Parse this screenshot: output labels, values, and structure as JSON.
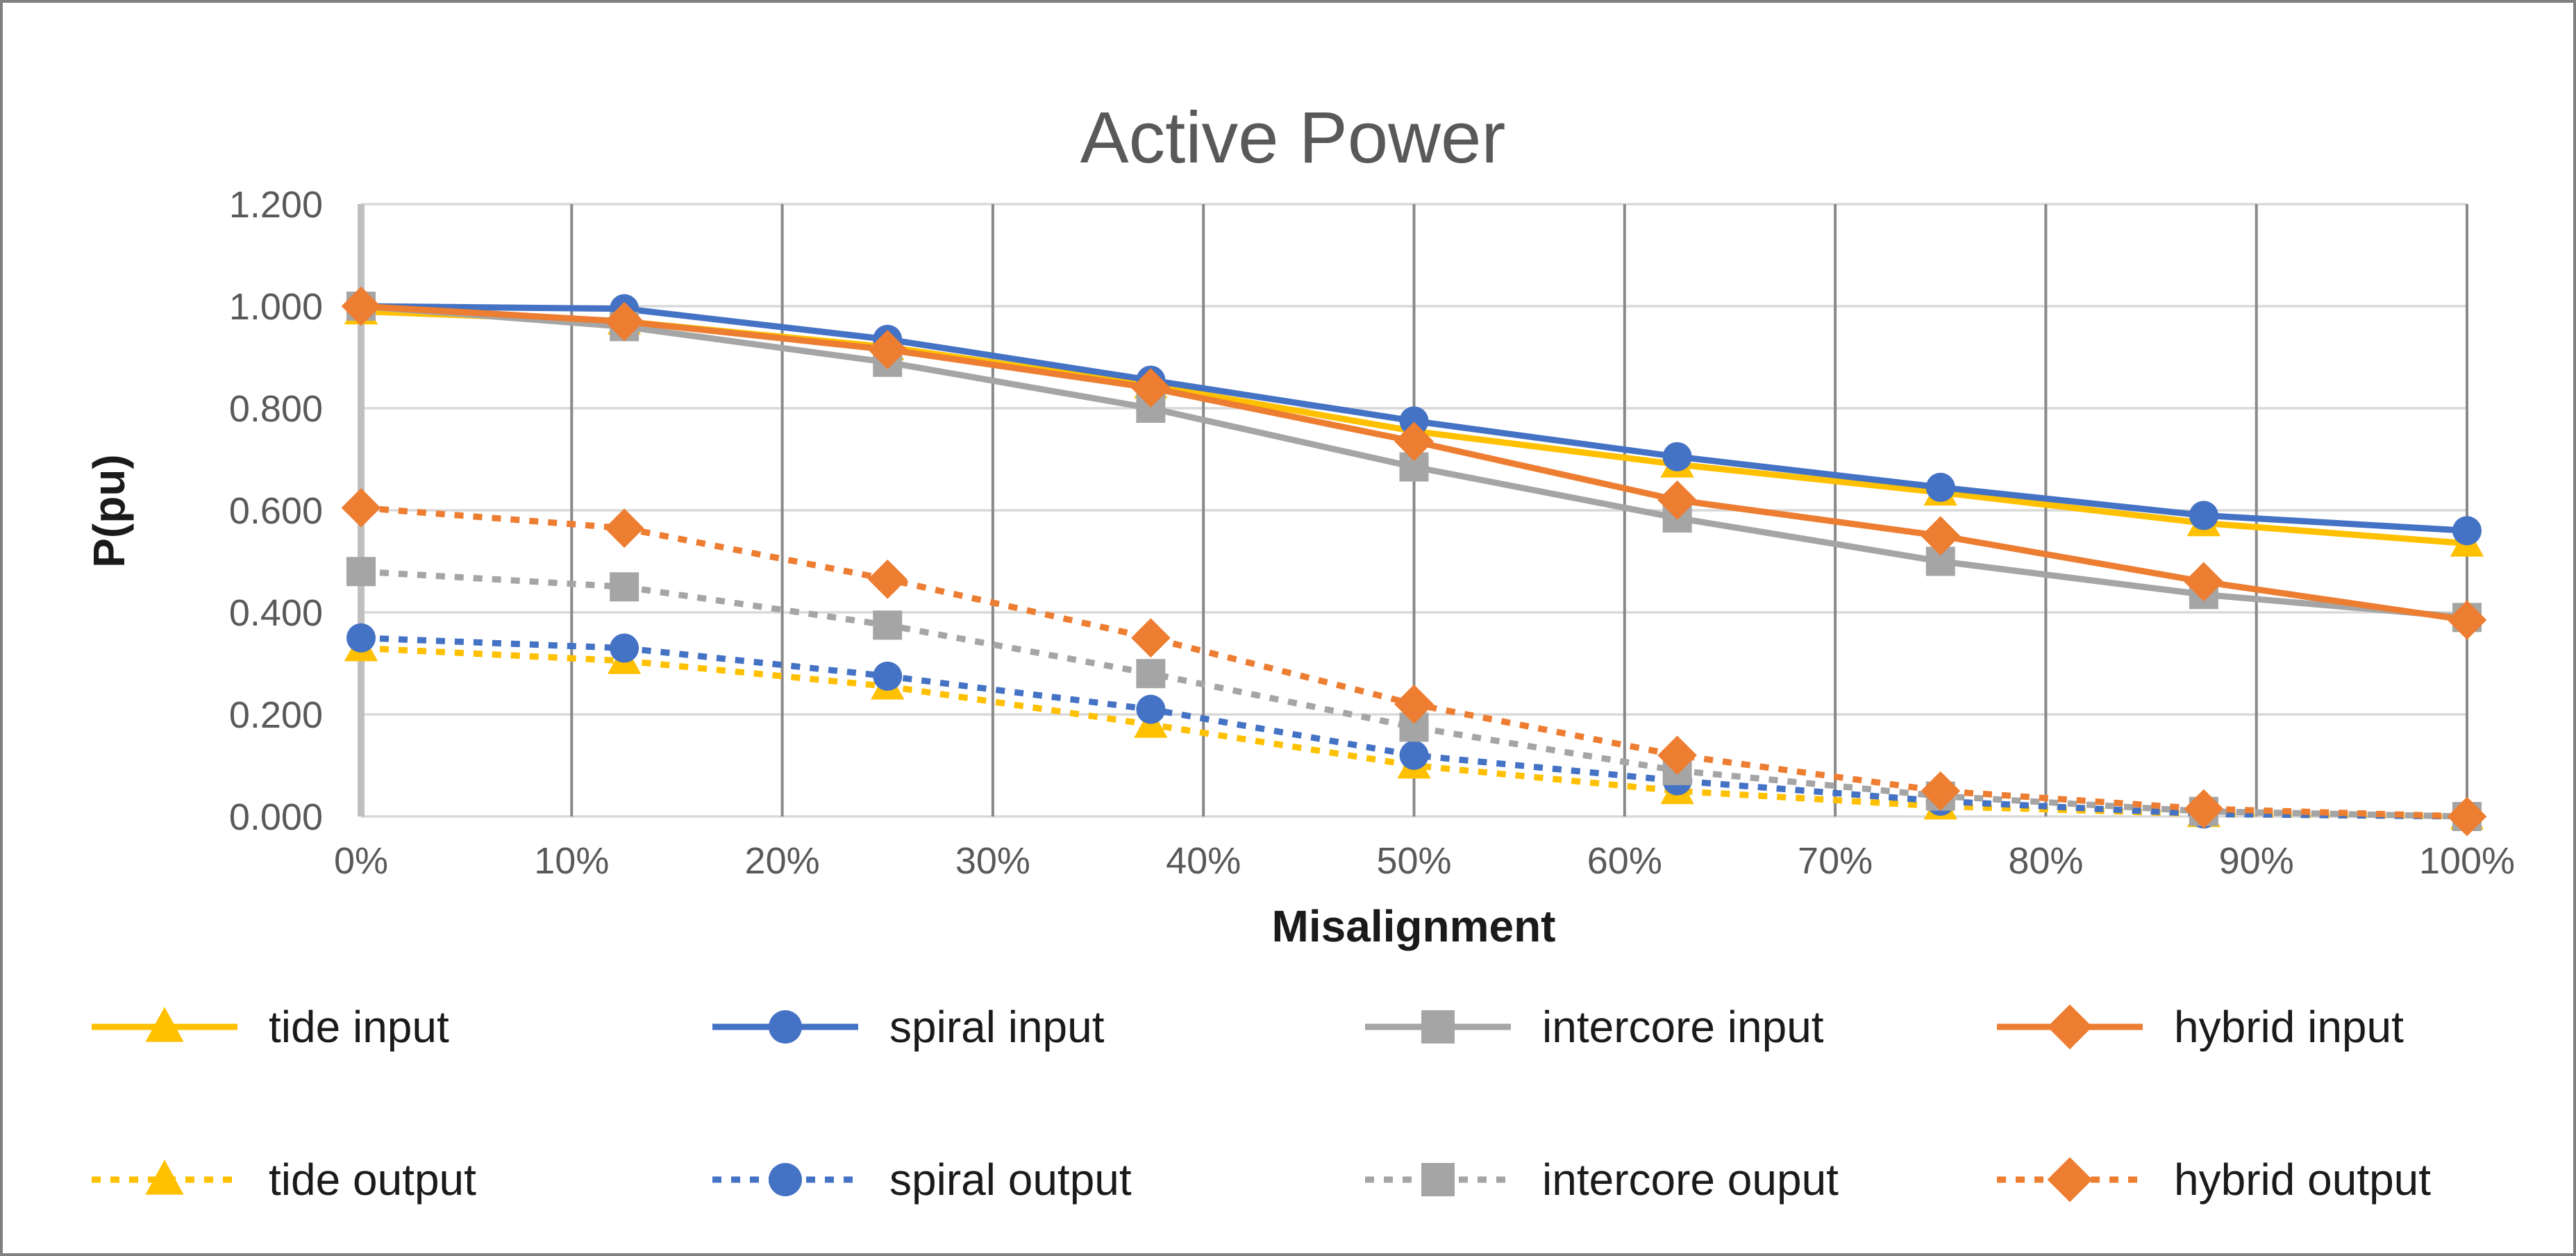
{
  "chart_data": {
    "type": "line",
    "title": "Active Power",
    "xlabel": "Misalignment",
    "ylabel": "P(pu)",
    "legend_position": "bottom",
    "grid": {
      "horizontal": true,
      "vertical": true
    },
    "ylim": [
      0.0,
      1.2
    ],
    "y_tick_step": 0.2,
    "y_tick_labels": [
      "0.000",
      "0.200",
      "0.400",
      "0.600",
      "0.800",
      "1.000",
      "1.200"
    ],
    "x_tick_labels": [
      "0%",
      "10%",
      "20%",
      "30%",
      "40%",
      "50%",
      "60%",
      "70%",
      "80%",
      "90%",
      "100%"
    ],
    "x_values_pct": [
      0,
      12.5,
      25,
      37.5,
      50,
      62.5,
      75,
      87.5,
      100
    ],
    "colors": {
      "tide": "#FFC000",
      "spiral": "#4472C4",
      "intercore": "#A5A5A5",
      "hybrid": "#ED7D31",
      "title_text": "#595959",
      "tick_text": "#595959",
      "horizontal_gridline": "#D9D9D9",
      "vertical_gridline": "#898989",
      "y_axis_line": "#BFBFBF",
      "outer_border": "#808080"
    },
    "series": [
      {
        "name": "tide input",
        "color": "#FFC000",
        "marker": "triangle",
        "line": "solid",
        "values": [
          0.99,
          0.97,
          0.92,
          0.845,
          0.755,
          0.69,
          0.635,
          0.575,
          0.535
        ]
      },
      {
        "name": "spiral input",
        "color": "#4472C4",
        "marker": "circle",
        "line": "solid",
        "values": [
          1.0,
          0.995,
          0.935,
          0.855,
          0.775,
          0.705,
          0.645,
          0.59,
          0.56
        ]
      },
      {
        "name": "intercore input",
        "color": "#A5A5A5",
        "marker": "square",
        "line": "solid",
        "values": [
          1.0,
          0.96,
          0.89,
          0.8,
          0.685,
          0.585,
          0.5,
          0.435,
          0.39
        ]
      },
      {
        "name": "hybrid input",
        "color": "#ED7D31",
        "marker": "diamond",
        "line": "solid",
        "values": [
          1.0,
          0.97,
          0.915,
          0.84,
          0.735,
          0.62,
          0.55,
          0.46,
          0.385
        ]
      },
      {
        "name": "tide output",
        "color": "#FFC000",
        "marker": "triangle",
        "line": "dotted",
        "values": [
          0.33,
          0.305,
          0.255,
          0.18,
          0.1,
          0.05,
          0.02,
          0.005,
          0.0
        ]
      },
      {
        "name": "spiral output",
        "color": "#4472C4",
        "marker": "circle",
        "line": "dotted",
        "values": [
          0.35,
          0.33,
          0.275,
          0.21,
          0.12,
          0.07,
          0.03,
          0.005,
          0.0
        ]
      },
      {
        "name": "intercore ouput",
        "color": "#A5A5A5",
        "marker": "square",
        "line": "dotted",
        "values": [
          0.48,
          0.45,
          0.375,
          0.28,
          0.175,
          0.09,
          0.04,
          0.01,
          0.0
        ]
      },
      {
        "name": "hybrid output",
        "color": "#ED7D31",
        "marker": "diamond",
        "line": "dotted",
        "values": [
          0.605,
          0.565,
          0.465,
          0.35,
          0.22,
          0.12,
          0.05,
          0.015,
          0.0
        ]
      }
    ]
  }
}
